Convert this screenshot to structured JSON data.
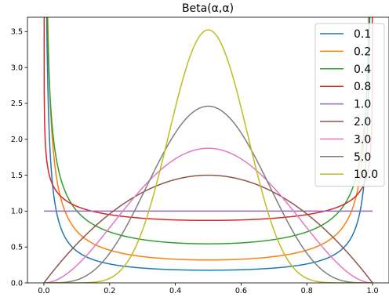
{
  "chart_data": {
    "type": "line",
    "title": "Beta(α,α)",
    "xlabel": "",
    "ylabel": "",
    "xlim": [
      -0.05,
      1.05
    ],
    "ylim": [
      0,
      3.7
    ],
    "x_ticks": [
      0.0,
      0.2,
      0.4,
      0.6,
      0.8,
      1.0
    ],
    "x_tick_labels": [
      "0.0",
      "0.2",
      "0.4",
      "0.6",
      "0.8",
      "1.0"
    ],
    "y_ticks": [
      0.0,
      0.5,
      1.0,
      1.5,
      2.0,
      2.5,
      3.0,
      3.5
    ],
    "y_tick_labels": [
      "0.0",
      "0.5",
      "1.0",
      "1.5",
      "2.0",
      "2.5",
      "3.0",
      "3.5"
    ],
    "grid": false,
    "legend_position": "top-right",
    "x_domain": [
      0,
      1
    ],
    "series": [
      {
        "name": "0.1",
        "alpha": 0.1,
        "color": "#1f77b4"
      },
      {
        "name": "0.2",
        "alpha": 0.2,
        "color": "#ff7f0e"
      },
      {
        "name": "0.4",
        "alpha": 0.4,
        "color": "#2ca02c"
      },
      {
        "name": "0.8",
        "alpha": 0.8,
        "color": "#d62728"
      },
      {
        "name": "1.0",
        "alpha": 1.0,
        "color": "#9467bd"
      },
      {
        "name": "2.0",
        "alpha": 2.0,
        "color": "#8c564b"
      },
      {
        "name": "3.0",
        "alpha": 3.0,
        "color": "#e377c2"
      },
      {
        "name": "5.0",
        "alpha": 5.0,
        "color": "#7f7f7f"
      },
      {
        "name": "10.0",
        "alpha": 10.0,
        "color": "#bcbd22"
      }
    ]
  }
}
